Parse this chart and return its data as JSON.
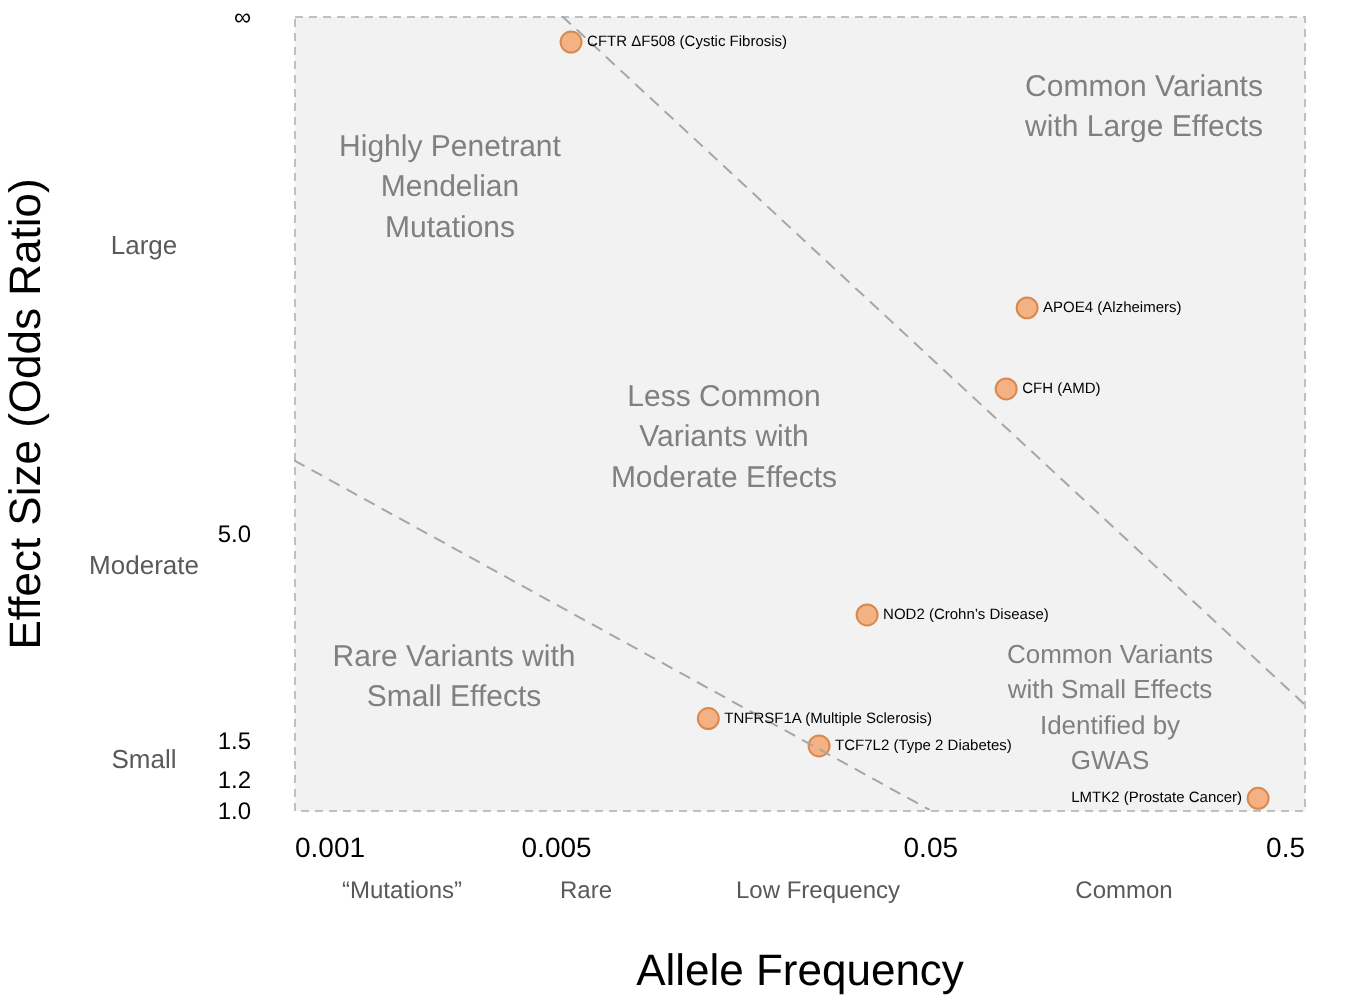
{
  "chart_data": {
    "type": "scatter",
    "xlabel": "Allele Frequency",
    "ylabel": "Effect Size (Odds Ratio)",
    "log": "xy",
    "xlim": [
      0.001,
      0.5
    ],
    "xticks": [
      0.001,
      0.005,
      0.05,
      0.5
    ],
    "ylim": [
      1,
      100
    ],
    "yticks": [
      {
        "value": 1,
        "label": "1.0"
      },
      1.2,
      1.5,
      {
        "value": 5,
        "label": "5.0"
      },
      {
        "value": 100,
        "label": "∞"
      }
    ],
    "grid": false,
    "series": [
      {
        "color": "#f4b183",
        "marker": "circle",
        "x": [
          0.0055,
          0.091,
          0.08,
          0.034,
          0.0128,
          0.0253,
          0.377
        ],
        "values": [
          86,
          18.4,
          11.5,
          3.1,
          1.7,
          1.45,
          1.07
        ]
      },
      {
        "type": "line",
        "color": "#a6a6a6",
        "line_style": "dashed",
        "marker": "none",
        "x": [
          0.001,
          0.05
        ],
        "values": [
          7.6,
          1
        ]
      },
      {
        "type": "line",
        "color": "#a6a6a6",
        "line_style": "dashed",
        "marker": "none",
        "x": [
          0.0052,
          0.5
        ],
        "values": [
          100,
          1.85
        ]
      }
    ],
    "annotations": [
      {
        "text": "CFTR ΔF508 (Cystic Fibrosis)",
        "x": 0.0055,
        "y": 86
      },
      {
        "text": "APOE4 (Alzheimers)",
        "x": 0.091,
        "y": 18.4
      },
      {
        "text": "CFH (AMD)",
        "x": 0.08,
        "y": 11.5
      },
      {
        "text": "NOD2 (Crohn’s Disease)",
        "x": 0.034,
        "y": 3.1
      },
      {
        "text": "TNFRSF1A (Multiple Sclerosis)",
        "x": 0.0128,
        "y": 1.7
      },
      {
        "text": "TCF7L2 (Type 2 Diabetes)",
        "x": 0.0253,
        "y": 1.45
      },
      {
        "text": "LMTK2 (Prostate Cancer)",
        "x": 0.377,
        "y": 1.07
      },
      "Highly Penetrant\nMendelian\nMutations",
      "Common Variants\nwith Large Effects",
      "Less Common\nVariants with\nModerate Effects",
      "Rare Variants with\nSmall Effects",
      "Common Variants\nwith Small Effects\nIdentified by\nGWAS",
      "“Mutations”",
      "Rare",
      "Low Frequency",
      "Common",
      "Large",
      "Moderate",
      "Small"
    ]
  }
}
